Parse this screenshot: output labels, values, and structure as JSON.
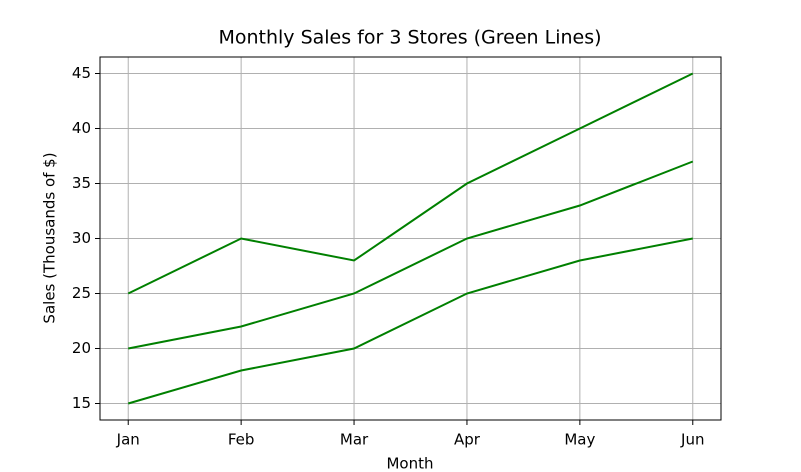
{
  "chart_data": {
    "type": "line",
    "title": "Monthly Sales for 3 Stores (Green Lines)",
    "x_label": "Month",
    "y_label": "Sales (Thousands of $)",
    "categories": [
      "Jan",
      "Feb",
      "Mar",
      "Apr",
      "May",
      "Jun"
    ],
    "series": [
      {
        "color": "#008000",
        "values": [
          25,
          30,
          28,
          35,
          40,
          45
        ]
      },
      {
        "color": "#008000",
        "values": [
          20,
          22,
          25,
          30,
          33,
          37
        ]
      },
      {
        "color": "#008000",
        "values": [
          15,
          18,
          20,
          25,
          28,
          30
        ]
      }
    ],
    "ylim": [
      13.5,
      46.5
    ],
    "yticks": [
      15,
      20,
      25,
      30,
      35,
      40,
      45
    ],
    "grid": true
  }
}
